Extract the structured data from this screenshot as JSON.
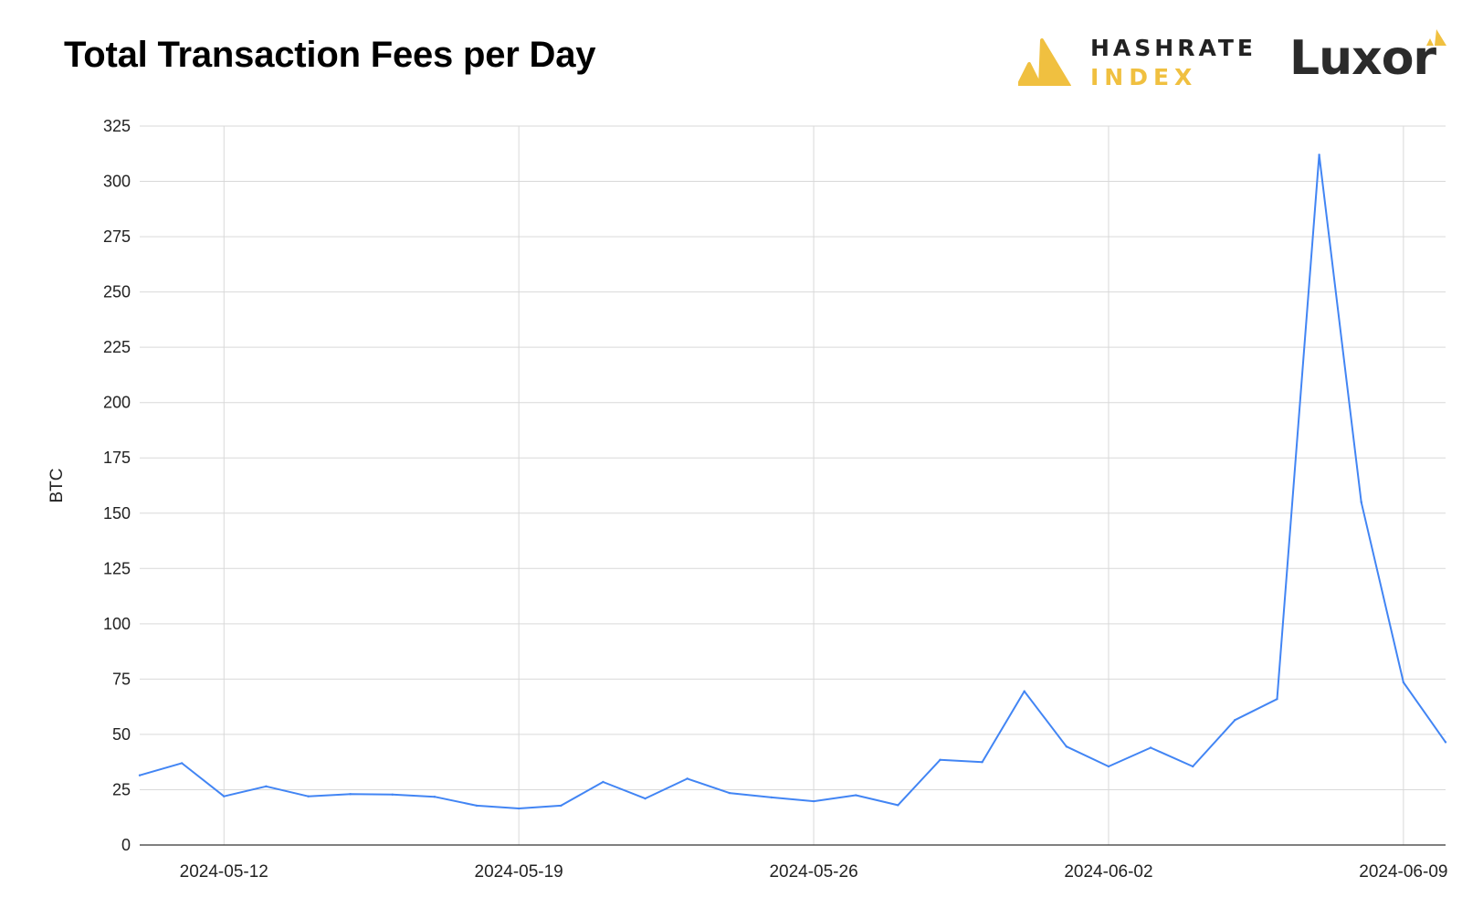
{
  "colors": {
    "line": "#4285f4",
    "grid": "#d9d9d9",
    "axis": "#333333",
    "brand_gold": "#f0c040",
    "brand_dark": "#2b2b2b"
  },
  "branding": {
    "hashrate_line1": "HASHRATE",
    "hashrate_line2": "INDEX",
    "luxor": "Luxor",
    "hashrate_icon": "hashrate-index-logo-icon",
    "luxor_icon": "luxor-logo-mark-icon"
  },
  "chart_data": {
    "type": "line",
    "title": "Total Transaction Fees per Day",
    "xlabel": "",
    "ylabel": "BTC",
    "ylim": [
      0,
      325
    ],
    "yticks": [
      0,
      25,
      50,
      75,
      100,
      125,
      150,
      175,
      200,
      225,
      250,
      275,
      300,
      325
    ],
    "xrange": [
      "2024-05-10",
      "2024-06-10"
    ],
    "xticks": [
      "2024-05-12",
      "2024-05-19",
      "2024-05-26",
      "2024-06-02",
      "2024-06-09"
    ],
    "grid": true,
    "legend": "none",
    "x": [
      "2024-05-10",
      "2024-05-11",
      "2024-05-12",
      "2024-05-13",
      "2024-05-14",
      "2024-05-15",
      "2024-05-16",
      "2024-05-17",
      "2024-05-18",
      "2024-05-19",
      "2024-05-20",
      "2024-05-21",
      "2024-05-22",
      "2024-05-23",
      "2024-05-24",
      "2024-05-25",
      "2024-05-26",
      "2024-05-27",
      "2024-05-28",
      "2024-05-29",
      "2024-05-30",
      "2024-05-31",
      "2024-06-01",
      "2024-06-02",
      "2024-06-03",
      "2024-06-04",
      "2024-06-05",
      "2024-06-06",
      "2024-06-07",
      "2024-06-08",
      "2024-06-09",
      "2024-06-10"
    ],
    "series": [
      {
        "values": [
          31.5,
          37,
          22,
          26.5,
          22,
          23,
          22.8,
          21.8,
          17.8,
          16.5,
          17.8,
          28.5,
          21,
          30,
          23.5,
          21.5,
          19.8,
          22.5,
          18,
          38.5,
          37.5,
          69.5,
          44.5,
          35.5,
          44,
          35.5,
          56.5,
          66,
          312,
          155,
          73.5,
          46.5
        ]
      }
    ]
  }
}
